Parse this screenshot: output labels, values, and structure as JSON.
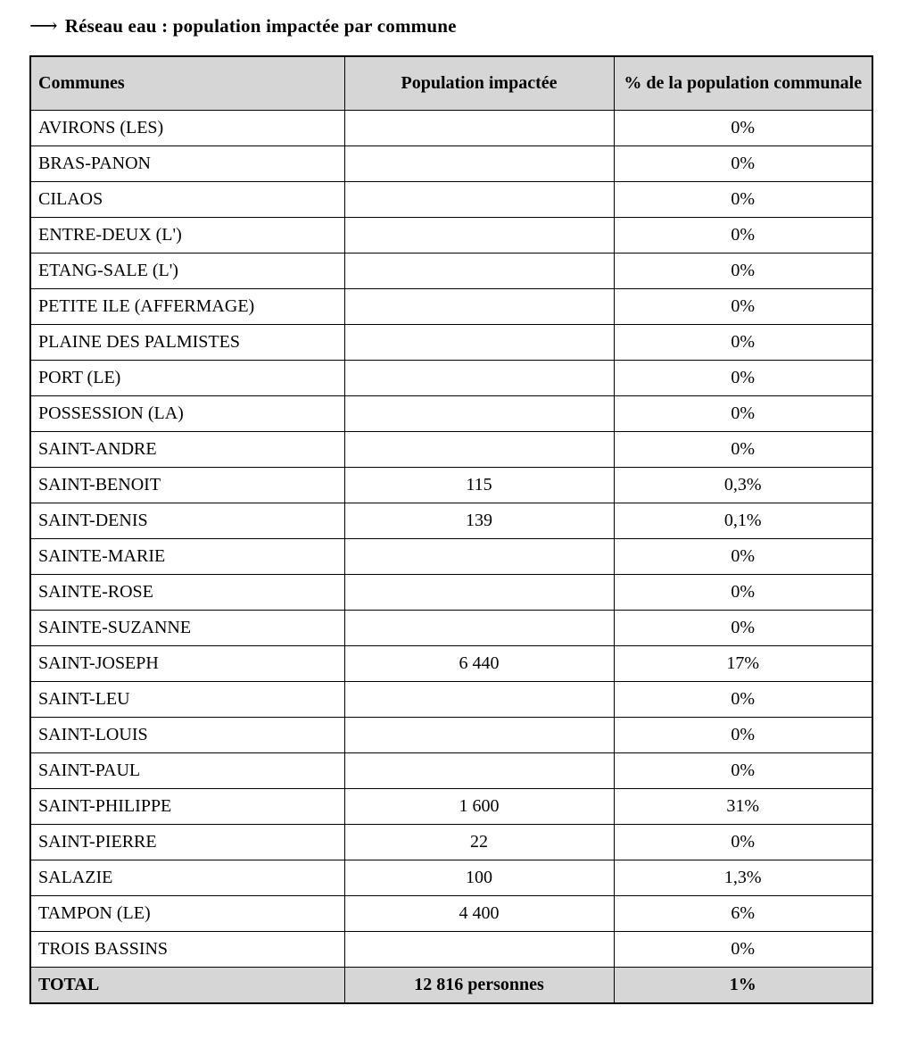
{
  "title": {
    "arrow": "⟶",
    "text": "Réseau eau : population impactée par commune"
  },
  "table": {
    "headers": {
      "communes": "Communes",
      "population": "Population impactée",
      "percent": "% de la population communale"
    },
    "rows": [
      {
        "commune": "AVIRONS (LES)",
        "population": "",
        "percent": "0%"
      },
      {
        "commune": "BRAS-PANON",
        "population": "",
        "percent": "0%"
      },
      {
        "commune": "CILAOS",
        "population": "",
        "percent": "0%"
      },
      {
        "commune": "ENTRE-DEUX (L')",
        "population": "",
        "percent": "0%"
      },
      {
        "commune": "ETANG-SALE (L')",
        "population": "",
        "percent": "0%"
      },
      {
        "commune": "PETITE ILE (AFFERMAGE)",
        "population": "",
        "percent": "0%"
      },
      {
        "commune": "PLAINE DES PALMISTES",
        "population": "",
        "percent": "0%"
      },
      {
        "commune": "PORT (LE)",
        "population": "",
        "percent": "0%"
      },
      {
        "commune": "POSSESSION (LA)",
        "population": "",
        "percent": "0%"
      },
      {
        "commune": "SAINT-ANDRE",
        "population": "",
        "percent": "0%"
      },
      {
        "commune": "SAINT-BENOIT",
        "population": "115",
        "percent": "0,3%"
      },
      {
        "commune": "SAINT-DENIS",
        "population": "139",
        "percent": "0,1%"
      },
      {
        "commune": "SAINTE-MARIE",
        "population": "",
        "percent": "0%"
      },
      {
        "commune": "SAINTE-ROSE",
        "population": "",
        "percent": "0%"
      },
      {
        "commune": "SAINTE-SUZANNE",
        "population": "",
        "percent": "0%"
      },
      {
        "commune": "SAINT-JOSEPH",
        "population": "6 440",
        "percent": "17%"
      },
      {
        "commune": "SAINT-LEU",
        "population": "",
        "percent": "0%"
      },
      {
        "commune": "SAINT-LOUIS",
        "population": "",
        "percent": "0%"
      },
      {
        "commune": "SAINT-PAUL",
        "population": "",
        "percent": "0%"
      },
      {
        "commune": "SAINT-PHILIPPE",
        "population": "1 600",
        "percent": "31%"
      },
      {
        "commune": "SAINT-PIERRE",
        "population": "22",
        "percent": "0%"
      },
      {
        "commune": "SALAZIE",
        "population": "100",
        "percent": "1,3%"
      },
      {
        "commune": "TAMPON (LE)",
        "population": "4 400",
        "percent": "6%"
      },
      {
        "commune": "TROIS BASSINS",
        "population": "",
        "percent": "0%"
      }
    ],
    "total": {
      "label": "TOTAL",
      "population": "12 816 personnes",
      "percent": "1%"
    }
  },
  "colors": {
    "header_bg": "#d6d6d6",
    "border": "#000000"
  }
}
